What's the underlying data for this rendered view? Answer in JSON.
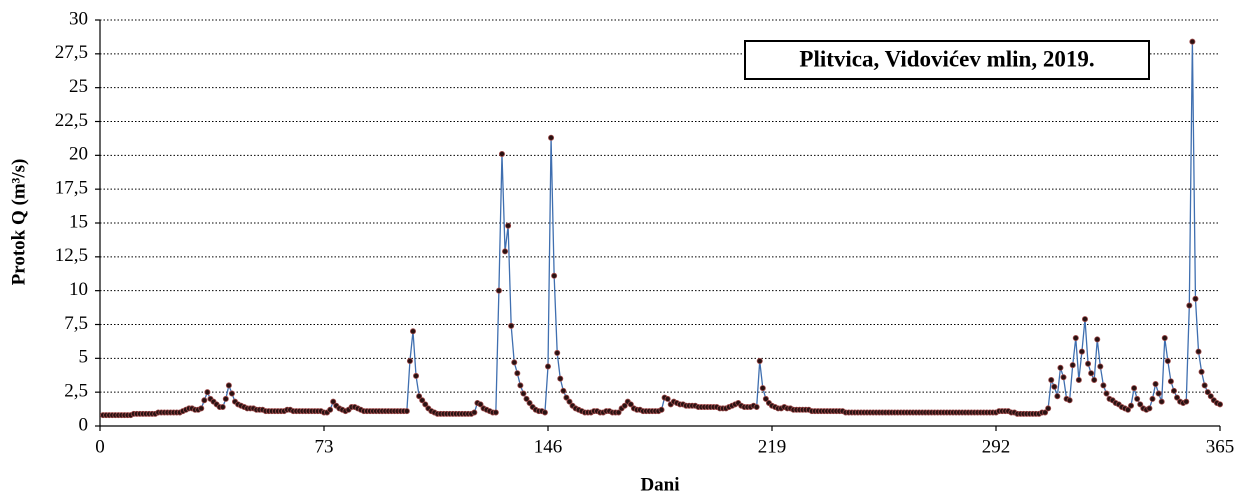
{
  "chart_data": {
    "type": "line",
    "title": "Plitvica, Vidovićev mlin, 2019.",
    "x_label": "Dani",
    "y_label": "Protok  Q (m³/s)",
    "line_color": "#3f6fb0",
    "marker_color": "#2a1212",
    "grid": true,
    "xlim": [
      0,
      365
    ],
    "xticks": [
      0,
      73,
      146,
      219,
      292,
      365
    ],
    "ylim": [
      0,
      30
    ],
    "yticks": [
      0,
      {
        "value": 2.5,
        "label": "2,5"
      },
      5,
      {
        "value": 7.5,
        "label": "7,5"
      },
      10,
      {
        "value": 12.5,
        "label": "12,5"
      },
      15,
      {
        "value": 17.5,
        "label": "17,5"
      },
      20,
      {
        "value": 22.5,
        "label": "22,5"
      },
      25,
      {
        "value": 27.5,
        "label": "27,5"
      },
      30
    ],
    "x": [
      1,
      2,
      3,
      4,
      5,
      6,
      7,
      8,
      9,
      10,
      11,
      12,
      13,
      14,
      15,
      16,
      17,
      18,
      19,
      20,
      21,
      22,
      23,
      24,
      25,
      26,
      27,
      28,
      29,
      30,
      31,
      32,
      33,
      34,
      35,
      36,
      37,
      38,
      39,
      40,
      41,
      42,
      43,
      44,
      45,
      46,
      47,
      48,
      49,
      50,
      51,
      52,
      53,
      54,
      55,
      56,
      57,
      58,
      59,
      60,
      61,
      62,
      63,
      64,
      65,
      66,
      67,
      68,
      69,
      70,
      71,
      72,
      73,
      74,
      75,
      76,
      77,
      78,
      79,
      80,
      81,
      82,
      83,
      84,
      85,
      86,
      87,
      88,
      89,
      90,
      91,
      92,
      93,
      94,
      95,
      96,
      97,
      98,
      99,
      100,
      101,
      102,
      103,
      104,
      105,
      106,
      107,
      108,
      109,
      110,
      111,
      112,
      113,
      114,
      115,
      116,
      117,
      118,
      119,
      120,
      121,
      122,
      123,
      124,
      125,
      126,
      127,
      128,
      129,
      130,
      131,
      132,
      133,
      134,
      135,
      136,
      137,
      138,
      139,
      140,
      141,
      142,
      143,
      144,
      145,
      146,
      147,
      148,
      149,
      150,
      151,
      152,
      153,
      154,
      155,
      156,
      157,
      158,
      159,
      160,
      161,
      162,
      163,
      164,
      165,
      166,
      167,
      168,
      169,
      170,
      171,
      172,
      173,
      174,
      175,
      176,
      177,
      178,
      179,
      180,
      181,
      182,
      183,
      184,
      185,
      186,
      187,
      188,
      189,
      190,
      191,
      192,
      193,
      194,
      195,
      196,
      197,
      198,
      199,
      200,
      201,
      202,
      203,
      204,
      205,
      206,
      207,
      208,
      209,
      210,
      211,
      212,
      213,
      214,
      215,
      216,
      217,
      218,
      219,
      220,
      221,
      222,
      223,
      224,
      225,
      226,
      227,
      228,
      229,
      230,
      231,
      232,
      233,
      234,
      235,
      236,
      237,
      238,
      239,
      240,
      241,
      242,
      243,
      244,
      245,
      246,
      247,
      248,
      249,
      250,
      251,
      252,
      253,
      254,
      255,
      256,
      257,
      258,
      259,
      260,
      261,
      262,
      263,
      264,
      265,
      266,
      267,
      268,
      269,
      270,
      271,
      272,
      273,
      274,
      275,
      276,
      277,
      278,
      279,
      280,
      281,
      282,
      283,
      284,
      285,
      286,
      287,
      288,
      289,
      290,
      291,
      292,
      293,
      294,
      295,
      296,
      297,
      298,
      299,
      300,
      301,
      302,
      303,
      304,
      305,
      306,
      307,
      308,
      309,
      310,
      311,
      312,
      313,
      314,
      315,
      316,
      317,
      318,
      319,
      320,
      321,
      322,
      323,
      324,
      325,
      326,
      327,
      328,
      329,
      330,
      331,
      332,
      333,
      334,
      335,
      336,
      337,
      338,
      339,
      340,
      341,
      342,
      343,
      344,
      345,
      346,
      347,
      348,
      349,
      350,
      351,
      352,
      353,
      354,
      355,
      356,
      357,
      358,
      359,
      360,
      361,
      362,
      363,
      364,
      365
    ],
    "values": [
      0.8,
      0.8,
      0.8,
      0.8,
      0.8,
      0.8,
      0.8,
      0.8,
      0.8,
      0.8,
      0.9,
      0.9,
      0.9,
      0.9,
      0.9,
      0.9,
      0.9,
      0.9,
      1.0,
      1.0,
      1.0,
      1.0,
      1.0,
      1.0,
      1.0,
      1.0,
      1.1,
      1.2,
      1.3,
      1.3,
      1.2,
      1.2,
      1.3,
      1.9,
      2.5,
      2.0,
      1.8,
      1.6,
      1.4,
      1.4,
      2.0,
      3.0,
      2.4,
      1.8,
      1.6,
      1.5,
      1.4,
      1.3,
      1.3,
      1.3,
      1.2,
      1.2,
      1.2,
      1.1,
      1.1,
      1.1,
      1.1,
      1.1,
      1.1,
      1.1,
      1.2,
      1.2,
      1.1,
      1.1,
      1.1,
      1.1,
      1.1,
      1.1,
      1.1,
      1.1,
      1.1,
      1.1,
      1.0,
      1.0,
      1.2,
      1.8,
      1.5,
      1.3,
      1.2,
      1.1,
      1.2,
      1.4,
      1.4,
      1.3,
      1.2,
      1.1,
      1.1,
      1.1,
      1.1,
      1.1,
      1.1,
      1.1,
      1.1,
      1.1,
      1.1,
      1.1,
      1.1,
      1.1,
      1.1,
      1.1,
      4.8,
      7.0,
      3.7,
      2.2,
      1.9,
      1.6,
      1.3,
      1.1,
      1.0,
      0.9,
      0.9,
      0.9,
      0.9,
      0.9,
      0.9,
      0.9,
      0.9,
      0.9,
      0.9,
      0.9,
      0.9,
      1.0,
      1.7,
      1.6,
      1.3,
      1.2,
      1.1,
      1.0,
      1.0,
      10.0,
      20.1,
      12.9,
      14.8,
      7.4,
      4.7,
      3.9,
      3.0,
      2.4,
      2.0,
      1.7,
      1.4,
      1.2,
      1.1,
      1.1,
      1.0,
      4.4,
      21.3,
      11.1,
      5.4,
      3.5,
      2.6,
      2.1,
      1.8,
      1.5,
      1.3,
      1.2,
      1.1,
      1.0,
      1.0,
      1.0,
      1.1,
      1.1,
      1.0,
      1.0,
      1.1,
      1.1,
      1.0,
      1.0,
      1.0,
      1.3,
      1.5,
      1.8,
      1.6,
      1.3,
      1.2,
      1.2,
      1.1,
      1.1,
      1.1,
      1.1,
      1.1,
      1.1,
      1.2,
      2.1,
      2.0,
      1.6,
      1.8,
      1.7,
      1.6,
      1.6,
      1.5,
      1.5,
      1.5,
      1.5,
      1.4,
      1.4,
      1.4,
      1.4,
      1.4,
      1.4,
      1.4,
      1.3,
      1.3,
      1.3,
      1.4,
      1.5,
      1.6,
      1.7,
      1.5,
      1.4,
      1.4,
      1.4,
      1.5,
      1.4,
      4.8,
      2.8,
      2.0,
      1.7,
      1.5,
      1.4,
      1.3,
      1.3,
      1.4,
      1.3,
      1.3,
      1.2,
      1.2,
      1.2,
      1.2,
      1.2,
      1.2,
      1.1,
      1.1,
      1.1,
      1.1,
      1.1,
      1.1,
      1.1,
      1.1,
      1.1,
      1.1,
      1.1,
      1.0,
      1.0,
      1.0,
      1.0,
      1.0,
      1.0,
      1.0,
      1.0,
      1.0,
      1.0,
      1.0,
      1.0,
      1.0,
      1.0,
      1.0,
      1.0,
      1.0,
      1.0,
      1.0,
      1.0,
      1.0,
      1.0,
      1.0,
      1.0,
      1.0,
      1.0,
      1.0,
      1.0,
      1.0,
      1.0,
      1.0,
      1.0,
      1.0,
      1.0,
      1.0,
      1.0,
      1.0,
      1.0,
      1.0,
      1.0,
      1.0,
      1.0,
      1.0,
      1.0,
      1.0,
      1.0,
      1.0,
      1.0,
      1.0,
      1.0,
      1.1,
      1.1,
      1.1,
      1.1,
      1.0,
      1.0,
      0.9,
      0.9,
      0.9,
      0.9,
      0.9,
      0.9,
      0.9,
      0.9,
      1.0,
      1.0,
      1.3,
      3.4,
      2.9,
      2.2,
      4.3,
      3.6,
      2.0,
      1.9,
      4.5,
      6.5,
      3.4,
      5.5,
      7.9,
      4.6,
      3.9,
      3.4,
      6.4,
      4.4,
      3.0,
      2.4,
      2.0,
      1.9,
      1.7,
      1.6,
      1.4,
      1.3,
      1.2,
      1.5,
      2.8,
      2.0,
      1.6,
      1.3,
      1.2,
      1.3,
      2.0,
      3.1,
      2.4,
      1.8,
      6.5,
      4.8,
      3.3,
      2.6,
      2.1,
      1.8,
      1.7,
      1.8,
      8.9,
      28.4,
      9.4,
      5.5,
      4.0,
      3.0,
      2.5,
      2.2,
      1.9,
      1.7,
      1.6
    ]
  }
}
